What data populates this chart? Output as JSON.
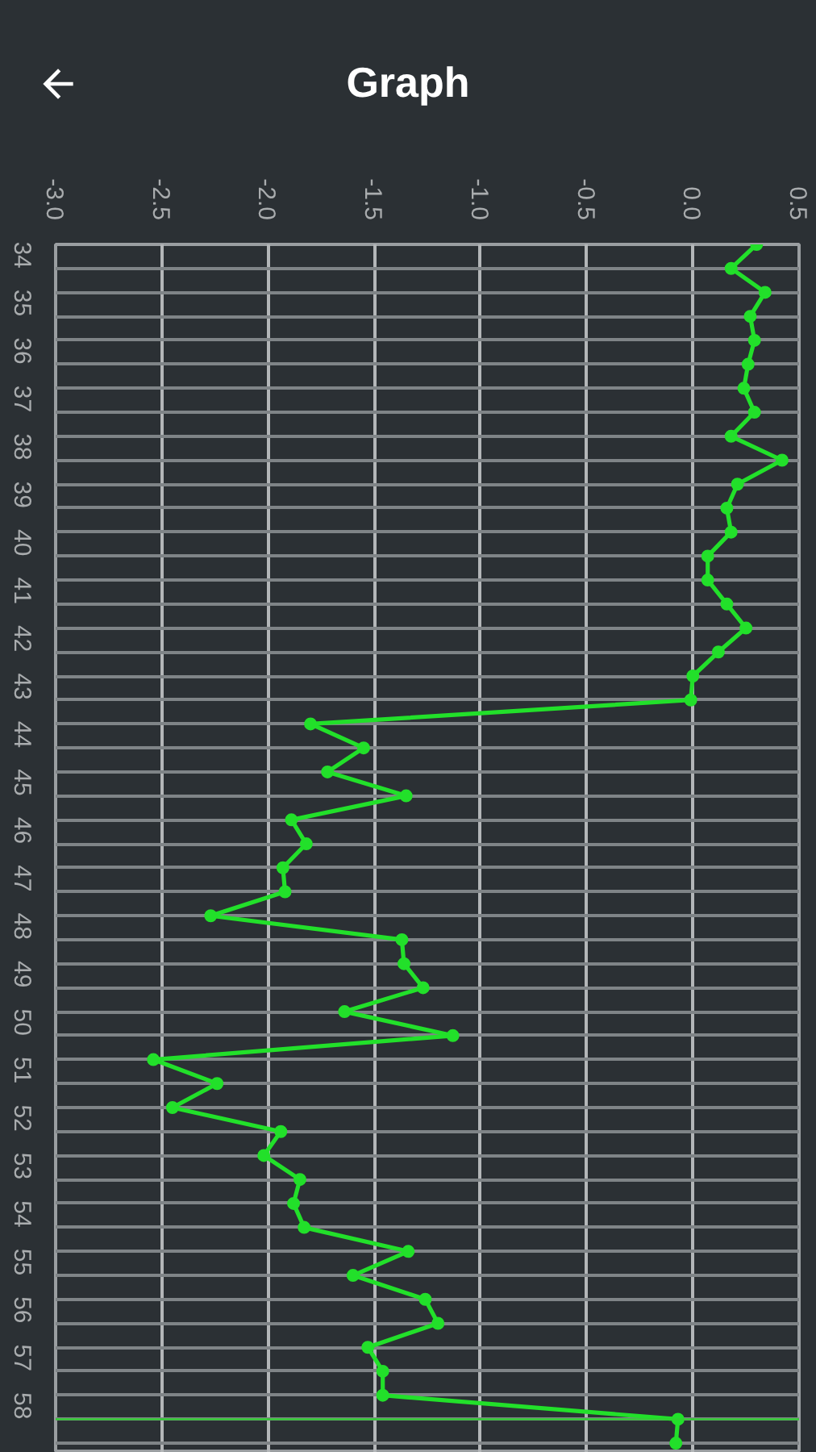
{
  "chart_data": {
    "type": "line",
    "title": "Graph",
    "orientation": "horizontal",
    "x": [
      33.5,
      34,
      34.5,
      35,
      35.5,
      36,
      36.5,
      37,
      37.5,
      38,
      38.5,
      39,
      39.5,
      40,
      40.5,
      41,
      41.5,
      42,
      42.5,
      43,
      43.5,
      44,
      44.5,
      45,
      45.5,
      46,
      46.5,
      47,
      47.5,
      48,
      48.5,
      49,
      49.5,
      50,
      50.5,
      51,
      51.5,
      52,
      52.5,
      53,
      53.5,
      54,
      54.5,
      55,
      55.5,
      56,
      56.5,
      57,
      57.5,
      58,
      58.5
    ],
    "values": [
      0.3,
      0.18,
      0.34,
      0.27,
      0.29,
      0.26,
      0.24,
      0.29,
      0.18,
      0.42,
      0.21,
      0.16,
      0.18,
      0.07,
      0.07,
      0.16,
      0.25,
      0.12,
      0.0,
      -0.01,
      -1.8,
      -1.55,
      -1.72,
      -1.35,
      -1.89,
      -1.82,
      -1.93,
      -1.92,
      -2.27,
      -1.37,
      -1.36,
      -1.27,
      -1.64,
      -1.13,
      -2.54,
      -2.24,
      -2.45,
      -1.94,
      -2.02,
      -1.85,
      -1.88,
      -1.83,
      -1.34,
      -1.6,
      -1.26,
      -1.2,
      -1.53,
      -1.46,
      -1.46,
      -0.07,
      -0.08
    ],
    "color": "#22e02a",
    "marker": "circle",
    "line_style": "solid",
    "xlim": [
      -3.0,
      0.5
    ],
    "xticks": [
      {
        "value": -3.0,
        "label": "-3.0"
      },
      {
        "value": -2.5,
        "label": "-2.5"
      },
      {
        "value": -2.0,
        "label": "-2.0"
      },
      {
        "value": -1.5,
        "label": "-1.5"
      },
      {
        "value": -1.0,
        "label": "-1.0"
      },
      {
        "value": -0.5,
        "label": "-0.5"
      },
      {
        "value": 0.0,
        "label": "0.0"
      },
      {
        "value": 0.5,
        "label": "0.5"
      }
    ],
    "ylim": [
      58.7,
      33.5
    ],
    "yticks": [
      {
        "value": 33.5,
        "label": null
      },
      34,
      {
        "value": 34.5,
        "label": null
      },
      35,
      {
        "value": 35.5,
        "label": null
      },
      36,
      {
        "value": 36.5,
        "label": null
      },
      37,
      {
        "value": 37.5,
        "label": null
      },
      38,
      {
        "value": 38.5,
        "label": null
      },
      39,
      {
        "value": 39.5,
        "label": null
      },
      40,
      {
        "value": 40.5,
        "label": null
      },
      41,
      {
        "value": 41.5,
        "label": null
      },
      42,
      {
        "value": 42.5,
        "label": null
      },
      43,
      {
        "value": 43.5,
        "label": null
      },
      44,
      {
        "value": 44.5,
        "label": null
      },
      45,
      {
        "value": 45.5,
        "label": null
      },
      46,
      {
        "value": 46.5,
        "label": null
      },
      47,
      {
        "value": 47.5,
        "label": null
      },
      48,
      {
        "value": 48.5,
        "label": null
      },
      49,
      {
        "value": 49.5,
        "label": null
      },
      50,
      {
        "value": 50.5,
        "label": null
      },
      51,
      {
        "value": 51.5,
        "label": null
      },
      52,
      {
        "value": 52.5,
        "label": null
      },
      53,
      {
        "value": 53.5,
        "label": null
      },
      54,
      {
        "value": 54.5,
        "label": null
      },
      55,
      {
        "value": 55.5,
        "label": null
      },
      56,
      {
        "value": 56.5,
        "label": null
      },
      57,
      {
        "value": 57.5,
        "label": null
      },
      58,
      {
        "value": 58.5,
        "label": null
      }
    ],
    "grid": true,
    "ref_lines": [
      {
        "axis": "y",
        "value": 58,
        "color": "#2fd22f"
      }
    ]
  }
}
